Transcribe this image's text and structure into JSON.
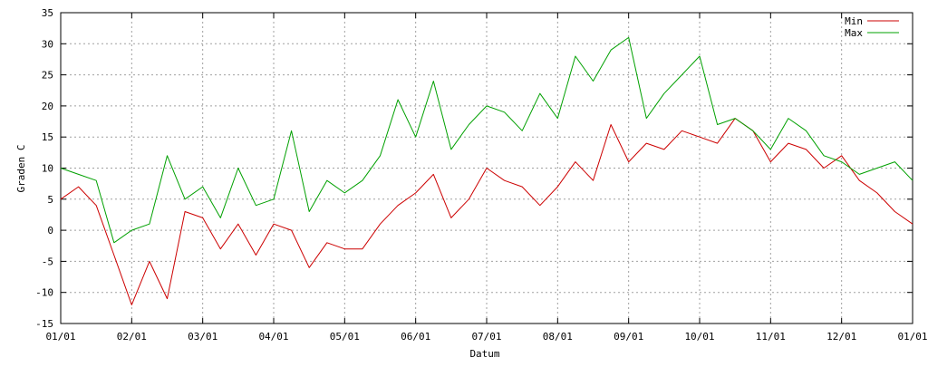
{
  "chart_data": {
    "type": "line",
    "title": "",
    "xlabel": "Datum",
    "ylabel": "Graden C",
    "ylim": [
      -15,
      35
    ],
    "y_ticks": [
      -15,
      -10,
      -5,
      0,
      5,
      10,
      15,
      20,
      25,
      30,
      35
    ],
    "x_ticks": [
      "01/01",
      "02/01",
      "03/01",
      "04/01",
      "05/01",
      "06/01",
      "07/01",
      "08/01",
      "09/01",
      "10/01",
      "11/01",
      "12/01",
      "01/01"
    ],
    "grid": true,
    "legend_position": "top-right",
    "x_unit": "month",
    "x": [
      0.0,
      0.25,
      0.5,
      0.75,
      1.0,
      1.25,
      1.5,
      1.75,
      2.0,
      2.25,
      2.5,
      2.75,
      3.0,
      3.25,
      3.5,
      3.75,
      4.0,
      4.25,
      4.5,
      4.75,
      5.0,
      5.25,
      5.5,
      5.75,
      6.0,
      6.25,
      6.5,
      6.75,
      7.0,
      7.25,
      7.5,
      7.75,
      8.0,
      8.25,
      8.5,
      8.75,
      9.0,
      9.25,
      9.5,
      9.75,
      10.0,
      10.25,
      10.5,
      10.75,
      11.0,
      11.25,
      11.5,
      11.75,
      12.0
    ],
    "series": [
      {
        "name": "Min",
        "color": "#cc0000",
        "values": [
          5,
          7,
          4,
          -4,
          -12,
          -5,
          -11,
          3,
          2,
          -3,
          1,
          -4,
          1,
          0,
          -6,
          -2,
          -3,
          -3,
          1,
          4,
          6,
          9,
          2,
          5,
          10,
          8,
          7,
          4,
          7,
          11,
          8,
          17,
          11,
          14,
          13,
          16,
          15,
          14,
          18,
          16,
          11,
          14,
          13,
          10,
          12,
          8,
          6,
          3,
          1
        ]
      },
      {
        "name": "Max",
        "color": "#00a000",
        "values": [
          10,
          9,
          8,
          -2,
          0,
          1,
          12,
          5,
          7,
          2,
          10,
          4,
          5,
          16,
          3,
          8,
          6,
          8,
          12,
          21,
          15,
          24,
          13,
          17,
          20,
          19,
          16,
          22,
          18,
          28,
          24,
          29,
          31,
          18,
          22,
          25,
          28,
          17,
          18,
          16,
          13,
          18,
          16,
          12,
          11,
          9,
          10,
          11,
          8
        ]
      }
    ]
  }
}
